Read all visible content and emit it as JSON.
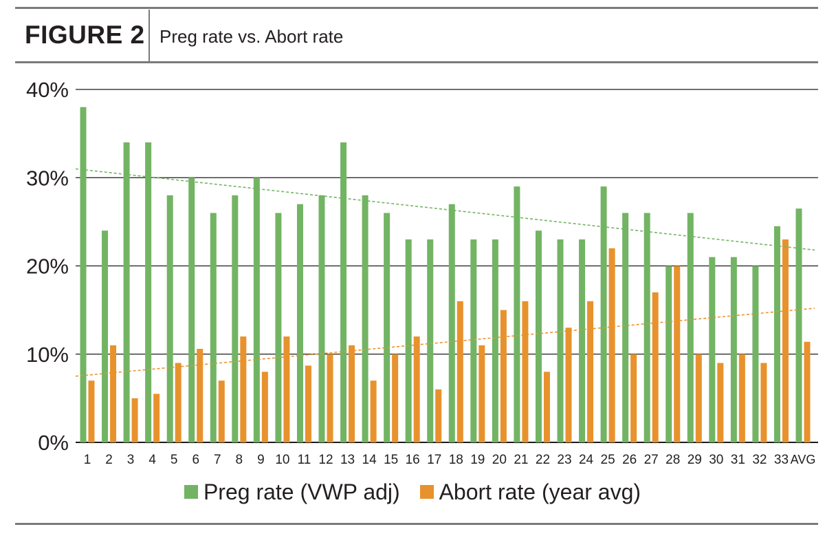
{
  "header": {
    "figure_label": "FIGURE 2",
    "title": "Preg rate vs. Abort rate"
  },
  "colors": {
    "preg": "#72b463",
    "abort": "#e8922d",
    "grid": "#1a1a1a",
    "rule": "#7a7a7a"
  },
  "legend": {
    "preg_label": "Preg rate (VWP adj)",
    "abort_label": "Abort rate (year avg)"
  },
  "chart_data": {
    "type": "bar",
    "categories": [
      "1",
      "2",
      "3",
      "4",
      "5",
      "6",
      "7",
      "8",
      "9",
      "10",
      "11",
      "12",
      "13",
      "14",
      "15",
      "16",
      "17",
      "18",
      "19",
      "20",
      "21",
      "22",
      "23",
      "24",
      "25",
      "26",
      "27",
      "28",
      "29",
      "30",
      "31",
      "32",
      "33",
      "AVG"
    ],
    "series": [
      {
        "name": "Preg rate (VWP adj)",
        "color": "#72b463",
        "values": [
          38,
          24,
          34,
          34,
          28,
          30,
          26,
          28,
          30,
          26,
          27,
          28,
          34,
          28,
          26,
          23,
          23,
          27,
          23,
          23,
          29,
          24,
          23,
          23,
          29,
          26,
          26,
          20,
          26,
          21,
          21,
          20,
          24.5,
          26.5
        ]
      },
      {
        "name": "Abort rate (year avg)",
        "color": "#e8922d",
        "values": [
          7,
          11,
          5,
          5.5,
          9,
          10.6,
          7,
          12,
          8,
          12,
          8.7,
          10,
          11,
          7,
          10,
          12,
          6,
          16,
          11,
          15,
          16,
          8,
          13,
          16,
          22,
          10,
          17,
          20,
          10,
          9,
          10,
          9,
          23,
          11.4
        ]
      }
    ],
    "trendlines": [
      {
        "series": "Preg rate (VWP adj)",
        "style": "dashed",
        "start": 31,
        "end": 21.8
      },
      {
        "series": "Abort rate (year avg)",
        "style": "dashed",
        "start": 7.5,
        "end": 15.2
      }
    ],
    "y_ticks": [
      "0%",
      "10%",
      "20%",
      "30%",
      "40%"
    ],
    "ylim": [
      0,
      40
    ],
    "grid": true,
    "legend_position": "bottom"
  }
}
